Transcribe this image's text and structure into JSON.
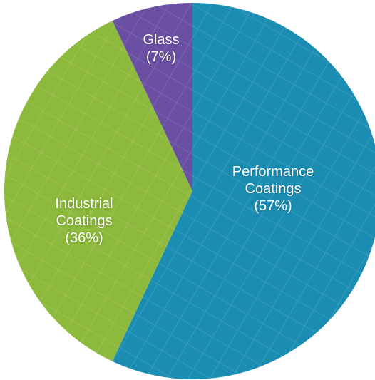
{
  "chart_data": {
    "type": "pie",
    "categories": [
      "Performance Coatings",
      "Industrial Coatings",
      "Glass"
    ],
    "values": [
      57,
      36,
      7
    ],
    "value_labels": [
      "(57%)",
      "(36%)",
      "(7%)"
    ],
    "colors": [
      "#1b8db3",
      "#8dba3c",
      "#6b4fa3"
    ]
  }
}
